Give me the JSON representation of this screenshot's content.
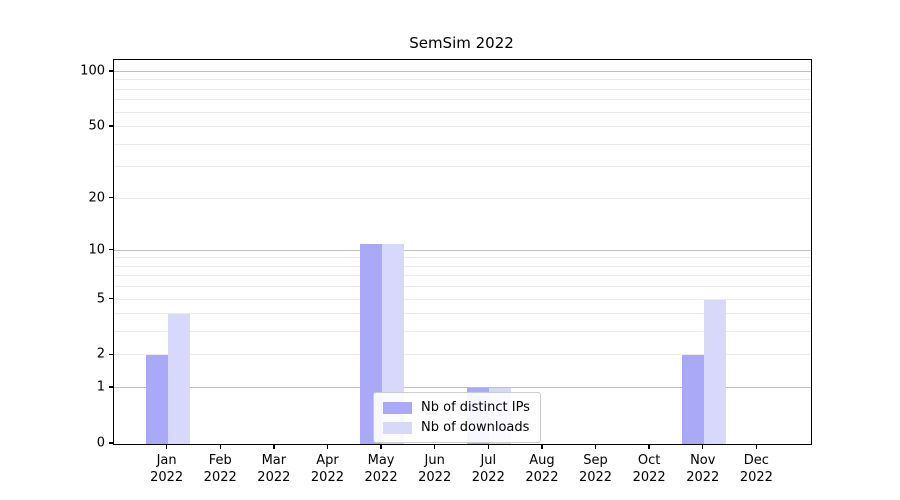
{
  "chart_data": {
    "type": "bar",
    "title": "SemSim 2022",
    "categories": [
      "Jan",
      "Feb",
      "Mar",
      "Apr",
      "May",
      "Jun",
      "Jul",
      "Aug",
      "Sep",
      "Oct",
      "Nov",
      "Dec"
    ],
    "year_label": "2022",
    "series": [
      {
        "name": "Nb of distinct IPs",
        "color": "#a9a9f8",
        "values": [
          2,
          0,
          0,
          0,
          11,
          0,
          1,
          0,
          0,
          0,
          2,
          0
        ]
      },
      {
        "name": "Nb of downloads",
        "color": "#d8d8fa",
        "values": [
          4,
          0,
          0,
          0,
          11,
          0,
          1,
          0,
          0,
          0,
          5,
          0
        ]
      }
    ],
    "xlabel": "",
    "ylabel": "",
    "scale": "log1p",
    "ylim": [
      0,
      115
    ],
    "y_ticks": [
      0,
      1,
      2,
      5,
      10,
      20,
      50,
      100
    ],
    "y_major_gridlines": [
      1,
      10,
      100
    ],
    "y_minor_gridlines": [
      2,
      3,
      4,
      5,
      6,
      7,
      8,
      9,
      20,
      30,
      40,
      50,
      60,
      70,
      80,
      90
    ],
    "grid": "on",
    "legend_position": "lower center",
    "colors": {
      "major_grid": "#c0c0c0",
      "minor_grid": "#ebebeb",
      "spine": "#000000",
      "background": "#ffffff"
    }
  }
}
